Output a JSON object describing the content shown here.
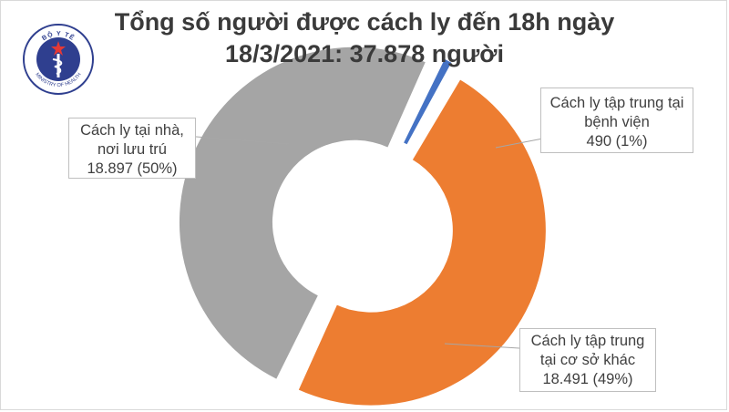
{
  "header": {
    "title_line1": "Tổng số người được cách ly đến 18h ngày",
    "title_line2": "18/3/2021: 37.878 người"
  },
  "logo": {
    "top_text": "BỘ Y TẾ",
    "bottom_text": "MINISTRY OF HEALTH",
    "ring_color": "#2f3f8f",
    "star_color": "#e53935"
  },
  "chart_data": {
    "type": "pie",
    "donut": true,
    "categories": [
      "Cách ly tập trung tại bệnh viện",
      "Cách ly tập trung tại cơ sở khác",
      "Cách ly tại nhà, nơi lưu trú"
    ],
    "values": [
      490,
      18491,
      18897
    ],
    "percent_labels": [
      "1%",
      "49%",
      "50%"
    ],
    "colors": [
      "#4472c4",
      "#ed7d31",
      "#a5a5a5"
    ],
    "labels": [
      {
        "lines": [
          "Cách ly tập trung tại",
          "bệnh viện",
          "490 (1%)"
        ]
      },
      {
        "lines": [
          "Cách ly tập trung",
          "tại cơ sở khác",
          "18.491 (49%)"
        ]
      },
      {
        "lines": [
          "Cách ly tại nhà,",
          "nơi lưu trú",
          "18.897 (50%)"
        ]
      }
    ]
  }
}
